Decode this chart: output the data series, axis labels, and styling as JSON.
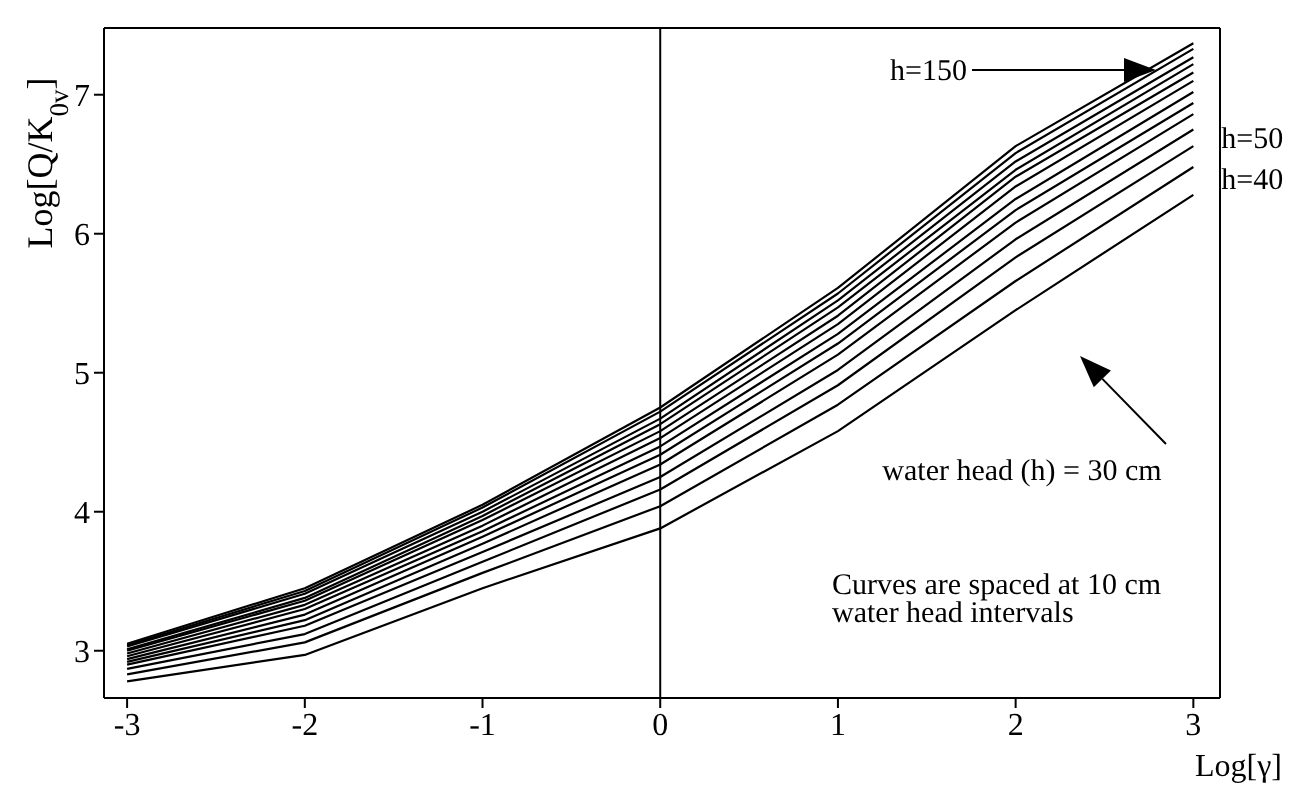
{
  "chart_data": {
    "type": "line",
    "xlabel": "Log[γ]",
    "ylabel": "Log[Q/K$_{0v}$]",
    "x": [
      -3,
      -2,
      -1,
      0,
      1,
      2,
      3
    ],
    "series": [
      {
        "color": "#000000",
        "values": [
          2.78,
          2.97,
          3.45,
          3.88,
          4.58,
          5.45,
          6.28
        ]
      },
      {
        "color": "#000000",
        "values": [
          2.83,
          3.06,
          3.56,
          4.04,
          4.77,
          5.66,
          6.48
        ]
      },
      {
        "color": "#000000",
        "values": [
          2.87,
          3.12,
          3.64,
          4.16,
          4.91,
          5.83,
          6.63
        ]
      },
      {
        "color": "#000000",
        "values": [
          2.9,
          3.18,
          3.71,
          4.25,
          5.02,
          5.96,
          6.75
        ]
      },
      {
        "color": "#000000",
        "values": [
          2.92,
          3.22,
          3.77,
          4.34,
          5.13,
          6.08,
          6.86
        ]
      },
      {
        "color": "#000000",
        "values": [
          2.94,
          3.26,
          3.82,
          4.41,
          5.21,
          6.17,
          6.94
        ]
      },
      {
        "color": "#000000",
        "values": [
          2.96,
          3.3,
          3.86,
          4.47,
          5.28,
          6.25,
          7.02
        ]
      },
      {
        "color": "#000000",
        "values": [
          2.98,
          3.33,
          3.9,
          4.53,
          5.35,
          6.34,
          7.1
        ]
      },
      {
        "color": "#000000",
        "values": [
          3.0,
          3.36,
          3.94,
          4.58,
          5.41,
          6.41,
          7.16
        ]
      },
      {
        "color": "#000000",
        "values": [
          3.01,
          3.38,
          3.97,
          4.63,
          5.47,
          6.46,
          7.22
        ]
      },
      {
        "color": "#000000",
        "values": [
          3.03,
          3.41,
          4.0,
          4.67,
          5.52,
          6.52,
          7.27
        ]
      },
      {
        "color": "#000000",
        "values": [
          3.04,
          3.43,
          4.03,
          4.72,
          5.57,
          6.58,
          7.33
        ]
      },
      {
        "color": "#000000",
        "values": [
          3.05,
          3.45,
          4.05,
          4.75,
          5.61,
          6.63,
          7.37
        ]
      }
    ],
    "xlim": [
      -3.13,
      3.15
    ],
    "xticks": [
      -3,
      -2,
      -1,
      0,
      1,
      2,
      3
    ],
    "ylim": [
      2.66,
      7.48
    ],
    "yticks": [
      3,
      4,
      5,
      6,
      7
    ],
    "ref_lines": [
      {
        "axis": "x",
        "value": 0,
        "color": "#000000"
      }
    ],
    "annotations": [
      "h=150",
      {
        "text": "h=50",
        "x": 3,
        "y": 6.63
      },
      {
        "text": "h=40",
        "x": 3,
        "y": 6.48
      },
      "water head (h) = 30 cm",
      "Curves are spaced at 10 cm water head intervals"
    ],
    "grid": false,
    "marker": "none",
    "line_style": "solid"
  }
}
